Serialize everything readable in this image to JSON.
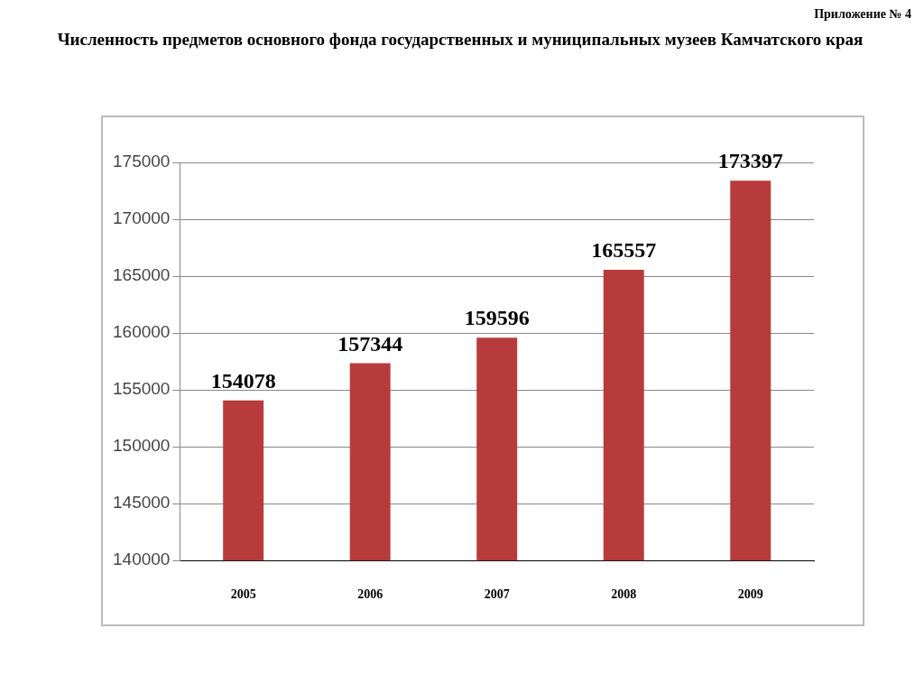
{
  "chart_data": {
    "type": "bar",
    "title": "Численность предметов основного фонда государственных и муниципальных музеев Камчатского края",
    "annotations": [
      "Приложение № 4"
    ],
    "categories": [
      "2005",
      "2006",
      "2007",
      "2008",
      "2009"
    ],
    "series": [
      {
        "color": "#b83b3b",
        "values": [
          154078,
          157344,
          159596,
          165557,
          173397
        ]
      }
    ],
    "ylim": [
      140000,
      175000
    ],
    "yticks": [
      140000,
      145000,
      150000,
      155000,
      160000,
      165000,
      170000,
      175000
    ],
    "grid": "y",
    "legend": false,
    "data_labels": true
  }
}
